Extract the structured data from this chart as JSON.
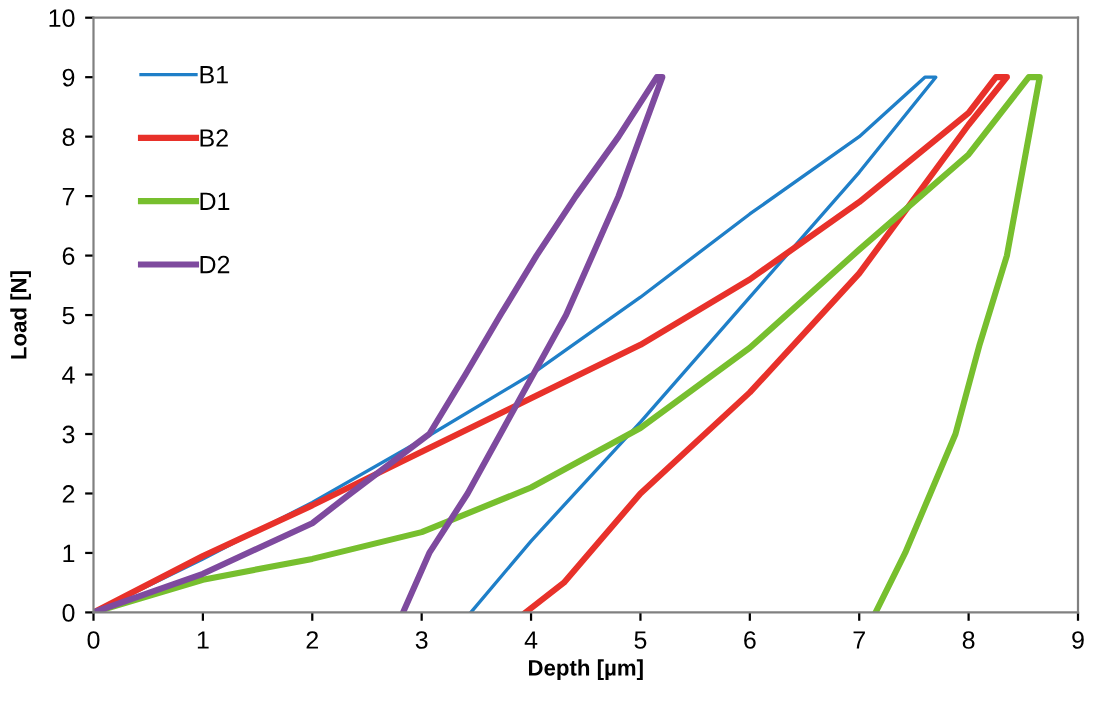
{
  "chart_data": {
    "type": "line",
    "xlabel": "Depth [µm]",
    "ylabel": "Load [N]",
    "xlim": [
      0,
      9
    ],
    "xticks": [
      0,
      1,
      2,
      3,
      4,
      5,
      6,
      7,
      8,
      9
    ],
    "ylim": [
      0,
      10
    ],
    "yticks": [
      0,
      1,
      2,
      3,
      4,
      5,
      6,
      7,
      8,
      9,
      10
    ],
    "grid": false,
    "legend": "top left",
    "marker": "none",
    "line_style": "solid",
    "series": [
      {
        "name": "B1",
        "color": "#1f7fc8",
        "x": [
          0,
          1,
          2,
          3,
          4,
          5,
          6,
          7,
          7.6,
          7.7,
          7,
          6,
          5,
          4,
          3.45
        ],
        "values": [
          0,
          0.9,
          1.85,
          2.9,
          4.0,
          5.3,
          6.7,
          8.0,
          9,
          9,
          7.4,
          5.3,
          3.2,
          1.2,
          0
        ]
      },
      {
        "name": "B2",
        "color": "#e8312a",
        "x": [
          0,
          1,
          2,
          3,
          4,
          5,
          6,
          7,
          8,
          8.25,
          8.35,
          8,
          7,
          6,
          5,
          4.3,
          3.95
        ],
        "values": [
          0,
          0.95,
          1.8,
          2.7,
          3.6,
          4.5,
          5.6,
          6.9,
          8.4,
          9,
          9,
          8.2,
          5.7,
          3.7,
          2.0,
          0.5,
          0
        ]
      },
      {
        "name": "D1",
        "color": "#77bf2e",
        "x": [
          0,
          1,
          2,
          3,
          4,
          5,
          6,
          7,
          8,
          8.55,
          8.65,
          8.35,
          8.1,
          7.88,
          7.65,
          7.42,
          7.15
        ],
        "values": [
          0,
          0.55,
          0.9,
          1.35,
          2.1,
          3.1,
          4.45,
          6.1,
          7.7,
          9,
          9,
          6.0,
          4.5,
          3.0,
          2.0,
          1.0,
          0
        ]
      },
      {
        "name": "D2",
        "color": "#7e4a9e",
        "x": [
          0,
          1,
          2,
          2.35,
          3.07,
          3.4,
          3.72,
          4.05,
          4.41,
          4.8,
          5.15,
          5.2,
          4.8,
          4.32,
          3.72,
          3.42,
          3.07,
          2.83
        ],
        "values": [
          0,
          0.65,
          1.5,
          2.0,
          3.0,
          4.0,
          5.0,
          6.0,
          7.0,
          8.0,
          9,
          9,
          7.0,
          5.0,
          3.0,
          2.0,
          1.0,
          0
        ]
      }
    ]
  }
}
